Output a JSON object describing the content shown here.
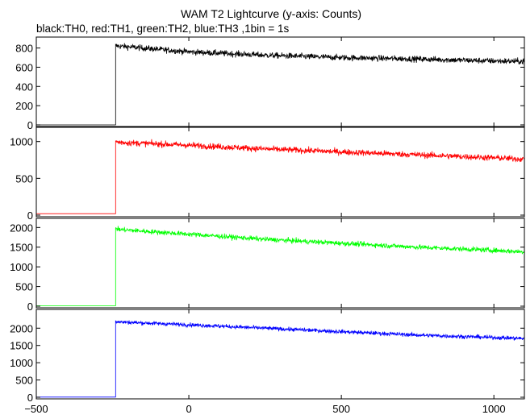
{
  "chart_data": {
    "type": "line",
    "title": "WAM T2 Lightcurve (y-axis: Counts)",
    "subtitle": "black:TH0, red:TH1, green:TH2, blue:TH3 ,1bin = 1s",
    "xlim": [
      -500,
      1100
    ],
    "x_ticks": [
      -500,
      0,
      500,
      1000
    ],
    "x_tick_labels": [
      "−500",
      "0",
      "500",
      "1000"
    ],
    "grid": false,
    "legend": "subtitle text (no legend box)",
    "panels": [
      {
        "name": "TH0",
        "color": "#000000",
        "ylim": [
          0,
          880
        ],
        "y_ticks": [
          0,
          200,
          400,
          600,
          800
        ],
        "series": [
          {
            "x": [
              -500,
              -240,
              -240,
              -230,
              0,
              250,
              500,
              750,
              1000,
              1100
            ],
            "y": [
              0,
              0,
              820,
              820,
              760,
              725,
              700,
              685,
              665,
              660
            ],
            "noise": 30
          }
        ]
      },
      {
        "name": "TH1",
        "color": "#ff0000",
        "ylim": [
          0,
          1150
        ],
        "y_ticks": [
          0,
          500,
          1000
        ],
        "series": [
          {
            "x": [
              -500,
              -240,
              -240,
              -230,
              0,
              250,
              500,
              750,
              1000,
              1100
            ],
            "y": [
              20,
              20,
              1000,
              990,
              950,
              900,
              860,
              820,
              780,
              760
            ],
            "noise": 40
          }
        ]
      },
      {
        "name": "TH2",
        "color": "#00ff00",
        "ylim": [
          0,
          2150
        ],
        "y_ticks": [
          0,
          500,
          1000,
          1500,
          2000
        ],
        "series": [
          {
            "x": [
              -500,
              -240,
              -240,
              -230,
              0,
              250,
              500,
              750,
              1000,
              1100
            ],
            "y": [
              10,
              10,
              1980,
              1950,
              1830,
              1700,
              1600,
              1500,
              1420,
              1380
            ],
            "noise": 60
          }
        ]
      },
      {
        "name": "TH3",
        "color": "#0000ff",
        "ylim": [
          0,
          2450
        ],
        "y_ticks": [
          0,
          500,
          1000,
          1500,
          2000
        ],
        "series": [
          {
            "x": [
              -500,
              -240,
              -240,
              -230,
              0,
              250,
              500,
              750,
              1000,
              1100
            ],
            "y": [
              5,
              5,
              2200,
              2180,
              2100,
              2000,
              1900,
              1800,
              1730,
              1700
            ],
            "noise": 55
          }
        ]
      }
    ]
  }
}
